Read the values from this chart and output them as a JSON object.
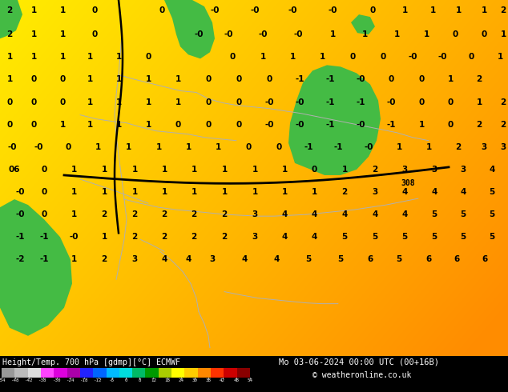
{
  "title_left": "Height/Temp. 700 hPa [gdmp][°C] ECMWF",
  "title_right": "Mo 03-06-2024 00:00 UTC (00+16B)",
  "credit": "© weatheronline.co.uk",
  "colorbar_levels": [
    -54,
    -48,
    -42,
    -38,
    -30,
    -24,
    -18,
    -12,
    -8,
    0,
    8,
    12,
    18,
    24,
    30,
    38,
    42,
    48,
    54
  ],
  "colorbar_colors": [
    "#999999",
    "#bbbbbb",
    "#dddddd",
    "#ff44ff",
    "#dd00dd",
    "#aa00aa",
    "#2222ff",
    "#0066ff",
    "#00bbff",
    "#00dddd",
    "#00bb66",
    "#009900",
    "#aacc00",
    "#ffff00",
    "#ffcc00",
    "#ff8800",
    "#ff3300",
    "#cc0000",
    "#880000"
  ],
  "fig_width": 6.34,
  "fig_height": 4.9,
  "dpi": 100
}
